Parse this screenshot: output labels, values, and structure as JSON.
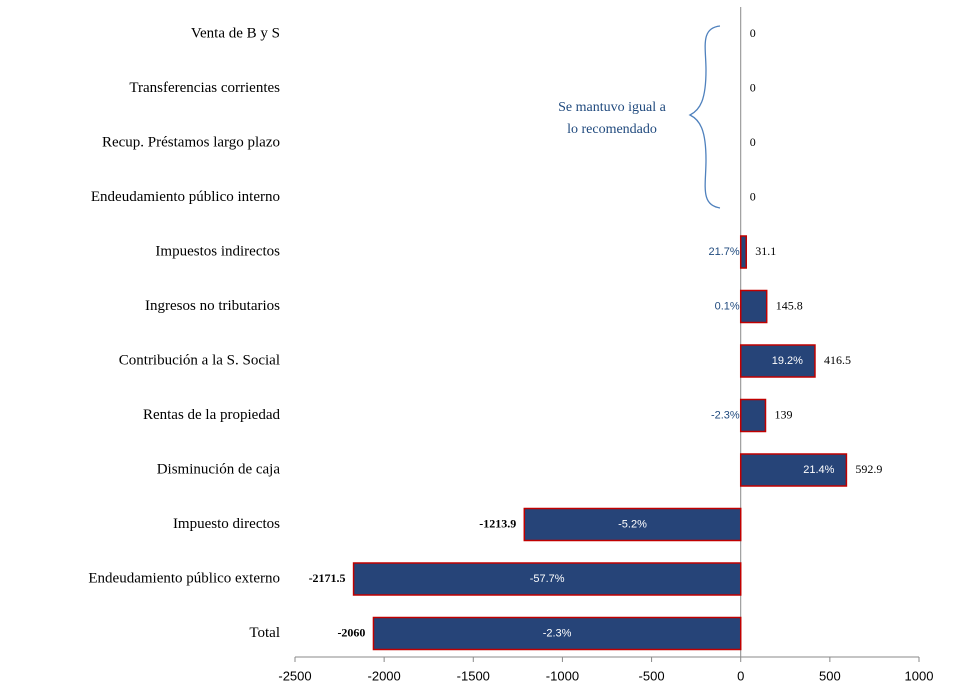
{
  "chart_data": {
    "type": "hbar",
    "categories": [
      "Venta de B y S",
      "Transferencias corrientes",
      "Recup. Préstamos largo plazo",
      "Endeudamiento público interno",
      "Impuestos indirectos",
      "Ingresos no tributarios",
      "Contribución a la S. Social",
      "Rentas de la propiedad",
      "Disminución de caja",
      "Impuesto directos",
      "Endeudamiento público externo",
      "Total"
    ],
    "values": [
      0,
      0,
      0,
      0,
      31.1,
      145.8,
      416.5,
      139,
      592.9,
      -1213.9,
      -2171.5,
      -2060
    ],
    "percent_labels": [
      null,
      null,
      null,
      null,
      "21.7%",
      "0.1%",
      "19.2%",
      "-2.3%",
      "21.4%",
      "-5.2%",
      "-57.7%",
      "-2.3%"
    ],
    "color": "#264478",
    "edge_color": "#c00000",
    "negative_label_color": "#e00000",
    "annotation": [
      "Se mantuvo igual a",
      "lo recomendado"
    ],
    "xlim": [
      -2500,
      1000
    ],
    "xticks": [
      -2500,
      -2000,
      -1500,
      -1000,
      -500,
      0,
      500,
      1000
    ]
  }
}
